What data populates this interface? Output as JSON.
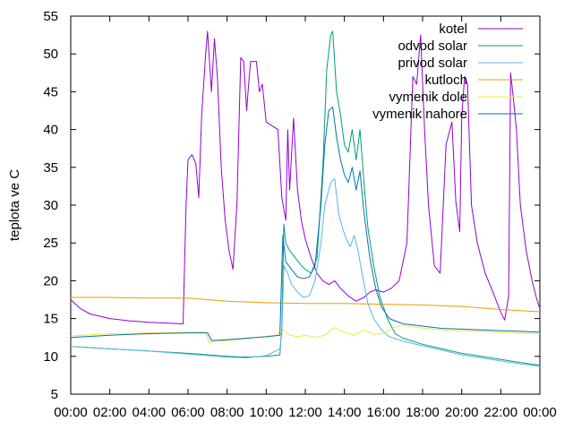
{
  "chart_data": {
    "type": "line",
    "ylabel": "teplota ve C",
    "xlabel": "",
    "title": "",
    "ylim": [
      5,
      55
    ],
    "xlim": [
      0,
      24
    ],
    "yticks": [
      5,
      10,
      15,
      20,
      25,
      30,
      35,
      40,
      45,
      50,
      55
    ],
    "xticks": [
      {
        "value": 0,
        "label": "00:00"
      },
      {
        "value": 2,
        "label": "02:00"
      },
      {
        "value": 4,
        "label": "04:00"
      },
      {
        "value": 6,
        "label": "06:00"
      },
      {
        "value": 8,
        "label": "08:00"
      },
      {
        "value": 10,
        "label": "10:00"
      },
      {
        "value": 12,
        "label": "12:00"
      },
      {
        "value": 14,
        "label": "14:00"
      },
      {
        "value": 16,
        "label": "16:00"
      },
      {
        "value": 18,
        "label": "18:00"
      },
      {
        "value": 20,
        "label": "20:00"
      },
      {
        "value": 22,
        "label": "22:00"
      },
      {
        "value": 24,
        "label": "00:00"
      }
    ],
    "grid": false,
    "legend_position": "top-right",
    "series": [
      {
        "name": "kotel",
        "color": "#9400d3",
        "points": [
          [
            0,
            17.5
          ],
          [
            0.5,
            16.3
          ],
          [
            1,
            15.6
          ],
          [
            2,
            15.0
          ],
          [
            3,
            14.7
          ],
          [
            4,
            14.5
          ],
          [
            5,
            14.4
          ],
          [
            5.75,
            14.3
          ],
          [
            5.9,
            30
          ],
          [
            6.0,
            36
          ],
          [
            6.2,
            36.7
          ],
          [
            6.4,
            35.5
          ],
          [
            6.55,
            31
          ],
          [
            6.7,
            42
          ],
          [
            6.9,
            50
          ],
          [
            7.0,
            53
          ],
          [
            7.2,
            45
          ],
          [
            7.35,
            52
          ],
          [
            7.5,
            47
          ],
          [
            7.7,
            35
          ],
          [
            7.9,
            28
          ],
          [
            8.1,
            24
          ],
          [
            8.3,
            21.5
          ],
          [
            8.5,
            30
          ],
          [
            8.7,
            49.5
          ],
          [
            8.85,
            49
          ],
          [
            9.0,
            42.5
          ],
          [
            9.1,
            46
          ],
          [
            9.2,
            49
          ],
          [
            9.5,
            49
          ],
          [
            9.65,
            45
          ],
          [
            9.8,
            46
          ],
          [
            10.0,
            41
          ],
          [
            10.3,
            40.5
          ],
          [
            10.6,
            40
          ],
          [
            10.8,
            31
          ],
          [
            11.0,
            28
          ],
          [
            11.1,
            40
          ],
          [
            11.2,
            32
          ],
          [
            11.4,
            41.5
          ],
          [
            11.6,
            32
          ],
          [
            11.8,
            28
          ],
          [
            12.0,
            25.5
          ],
          [
            12.3,
            23
          ],
          [
            12.6,
            21
          ],
          [
            12.9,
            20
          ],
          [
            13.2,
            19.5
          ],
          [
            13.5,
            20
          ],
          [
            13.8,
            19
          ],
          [
            14.2,
            18
          ],
          [
            14.6,
            17.3
          ],
          [
            15.0,
            17.8
          ],
          [
            15.3,
            18.5
          ],
          [
            15.6,
            18.8
          ],
          [
            16.0,
            18.5
          ],
          [
            16.4,
            19
          ],
          [
            16.8,
            20
          ],
          [
            17.2,
            25
          ],
          [
            17.5,
            47
          ],
          [
            17.7,
            46
          ],
          [
            17.9,
            52.5
          ],
          [
            18.1,
            40
          ],
          [
            18.3,
            30
          ],
          [
            18.6,
            22
          ],
          [
            18.9,
            21
          ],
          [
            19.2,
            38
          ],
          [
            19.5,
            41
          ],
          [
            19.7,
            30.5
          ],
          [
            19.9,
            26.5
          ],
          [
            20.0,
            41.5
          ],
          [
            20.15,
            47
          ],
          [
            20.3,
            46
          ],
          [
            20.5,
            30
          ],
          [
            20.8,
            25
          ],
          [
            21.2,
            21
          ],
          [
            21.6,
            18.5
          ],
          [
            22.0,
            15.8
          ],
          [
            22.2,
            14.8
          ],
          [
            22.4,
            18
          ],
          [
            22.5,
            47.5
          ],
          [
            22.65,
            44
          ],
          [
            22.8,
            40
          ],
          [
            23.0,
            30
          ],
          [
            23.3,
            24
          ],
          [
            23.6,
            20
          ],
          [
            23.85,
            17.5
          ],
          [
            24,
            16.3
          ]
        ]
      },
      {
        "name": "odvod solar",
        "color": "#009e73",
        "points": [
          [
            0,
            11.3
          ],
          [
            2,
            11.0
          ],
          [
            4,
            10.7
          ],
          [
            6,
            10.4
          ],
          [
            8,
            10.0
          ],
          [
            9,
            9.9
          ],
          [
            10,
            10.0
          ],
          [
            10.7,
            10.2
          ],
          [
            10.8,
            14
          ],
          [
            10.9,
            27.5
          ],
          [
            11.0,
            25
          ],
          [
            11.2,
            24
          ],
          [
            11.5,
            23
          ],
          [
            11.8,
            22
          ],
          [
            12.0,
            21.5
          ],
          [
            12.3,
            21
          ],
          [
            12.6,
            23
          ],
          [
            12.9,
            35
          ],
          [
            13.1,
            48
          ],
          [
            13.3,
            52.5
          ],
          [
            13.4,
            53
          ],
          [
            13.6,
            45
          ],
          [
            13.8,
            42
          ],
          [
            14.0,
            38
          ],
          [
            14.2,
            37
          ],
          [
            14.4,
            40
          ],
          [
            14.6,
            36
          ],
          [
            14.8,
            40
          ],
          [
            15.0,
            33
          ],
          [
            15.2,
            27
          ],
          [
            15.5,
            22
          ],
          [
            15.8,
            18
          ],
          [
            16.2,
            15
          ],
          [
            16.6,
            13
          ],
          [
            17.0,
            12.4
          ],
          [
            17.5,
            12.0
          ],
          [
            18,
            11.6
          ],
          [
            19,
            11.0
          ],
          [
            20,
            10.4
          ],
          [
            21,
            10.0
          ],
          [
            22,
            9.6
          ],
          [
            23,
            9.2
          ],
          [
            24,
            8.8
          ]
        ]
      },
      {
        "name": "privod solar",
        "color": "#56b4e9",
        "points": [
          [
            0,
            11.3
          ],
          [
            2,
            11.0
          ],
          [
            4,
            10.7
          ],
          [
            6,
            10.3
          ],
          [
            8,
            9.9
          ],
          [
            9,
            9.8
          ],
          [
            10,
            10.1
          ],
          [
            10.7,
            11.0
          ],
          [
            10.8,
            13
          ],
          [
            10.9,
            22
          ],
          [
            11.1,
            21
          ],
          [
            11.3,
            19.5
          ],
          [
            11.6,
            18.5
          ],
          [
            11.9,
            17.8
          ],
          [
            12.2,
            18
          ],
          [
            12.5,
            20
          ],
          [
            12.8,
            25
          ],
          [
            13.0,
            30
          ],
          [
            13.3,
            33
          ],
          [
            13.5,
            33.5
          ],
          [
            13.7,
            29
          ],
          [
            13.9,
            27
          ],
          [
            14.1,
            25.5
          ],
          [
            14.3,
            24.5
          ],
          [
            14.5,
            26
          ],
          [
            14.7,
            24
          ],
          [
            14.9,
            21
          ],
          [
            15.2,
            17
          ],
          [
            15.5,
            15
          ],
          [
            15.9,
            13.5
          ],
          [
            16.3,
            12.6
          ],
          [
            17,
            12.0
          ],
          [
            18,
            11.4
          ],
          [
            19,
            10.8
          ],
          [
            20,
            10.2
          ],
          [
            21,
            9.8
          ],
          [
            22,
            9.4
          ],
          [
            23,
            9.0
          ],
          [
            24,
            8.7
          ]
        ]
      },
      {
        "name": "kutloch",
        "color": "#e69f00",
        "points": [
          [
            0,
            17.8
          ],
          [
            2,
            17.8
          ],
          [
            4,
            17.7
          ],
          [
            6,
            17.7
          ],
          [
            7,
            17.5
          ],
          [
            8,
            17.3
          ],
          [
            10,
            17.1
          ],
          [
            12,
            17.0
          ],
          [
            14,
            17.0
          ],
          [
            16,
            16.9
          ],
          [
            18,
            16.8
          ],
          [
            20,
            16.6
          ],
          [
            22,
            16.2
          ],
          [
            24,
            15.9
          ]
        ]
      },
      {
        "name": "vymenik dole",
        "color": "#f0e442",
        "points": [
          [
            0,
            12.7
          ],
          [
            2,
            13.0
          ],
          [
            4,
            13.1
          ],
          [
            6,
            13.2
          ],
          [
            6.9,
            13.2
          ],
          [
            7.1,
            11.8
          ],
          [
            7.5,
            12.0
          ],
          [
            8.5,
            12.2
          ],
          [
            9.5,
            12.5
          ],
          [
            10.5,
            12.8
          ],
          [
            10.9,
            13.5
          ],
          [
            11.2,
            12.8
          ],
          [
            11.6,
            12.6
          ],
          [
            12.0,
            12.8
          ],
          [
            12.5,
            12.5
          ],
          [
            13.0,
            12.8
          ],
          [
            13.5,
            13.8
          ],
          [
            14.0,
            13.2
          ],
          [
            14.5,
            12.8
          ],
          [
            15.0,
            13.5
          ],
          [
            15.5,
            12.9
          ],
          [
            16.0,
            13.0
          ],
          [
            16.5,
            13.8
          ],
          [
            17.0,
            14.1
          ],
          [
            17.5,
            13.9
          ],
          [
            18.5,
            13.6
          ],
          [
            19.5,
            13.4
          ],
          [
            21,
            13.3
          ],
          [
            22.5,
            13.1
          ],
          [
            24,
            13.0
          ]
        ]
      },
      {
        "name": "vymenik nahore",
        "color": "#0072b2",
        "points": [
          [
            0,
            12.5
          ],
          [
            2,
            12.8
          ],
          [
            4,
            13.0
          ],
          [
            6,
            13.1
          ],
          [
            7,
            13.1
          ],
          [
            7.2,
            12.1
          ],
          [
            8,
            12.2
          ],
          [
            9,
            12.4
          ],
          [
            10,
            12.6
          ],
          [
            10.7,
            12.8
          ],
          [
            10.85,
            26
          ],
          [
            11.0,
            22.5
          ],
          [
            11.3,
            21.5
          ],
          [
            11.6,
            20.5
          ],
          [
            11.9,
            20.3
          ],
          [
            12.2,
            20.5
          ],
          [
            12.5,
            22
          ],
          [
            12.8,
            30
          ],
          [
            13.0,
            38
          ],
          [
            13.2,
            42.5
          ],
          [
            13.4,
            43
          ],
          [
            13.6,
            39
          ],
          [
            13.8,
            36
          ],
          [
            14.0,
            34
          ],
          [
            14.2,
            33
          ],
          [
            14.4,
            35
          ],
          [
            14.6,
            32
          ],
          [
            14.8,
            34.5
          ],
          [
            15.0,
            29
          ],
          [
            15.3,
            23
          ],
          [
            15.6,
            19
          ],
          [
            15.9,
            16.5
          ],
          [
            16.3,
            15
          ],
          [
            17,
            14.3
          ],
          [
            18,
            14.0
          ],
          [
            19,
            13.7
          ],
          [
            20,
            13.6
          ],
          [
            21,
            13.5
          ],
          [
            22,
            13.4
          ],
          [
            23,
            13.3
          ],
          [
            24,
            13.2
          ]
        ]
      }
    ]
  }
}
